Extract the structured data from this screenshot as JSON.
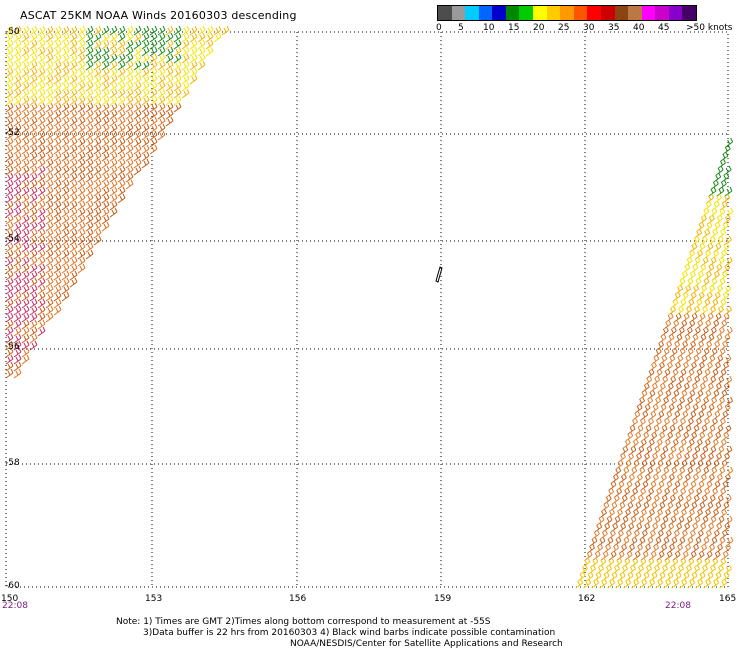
{
  "title": "ASCAT 25KM NOAA Winds 20160303 descending",
  "legend": {
    "colors": [
      "#4d4d4d",
      "#9a9a9a",
      "#00ccff",
      "#0066ff",
      "#0000cc",
      "#008800",
      "#00cc00",
      "#ffff00",
      "#ffcc00",
      "#ff9900",
      "#ff5500",
      "#ff0000",
      "#cc0000",
      "#8b4513",
      "#bb7744",
      "#ff00ff",
      "#cc00cc",
      "#8800cc",
      "#440066"
    ],
    "labels": [
      "0",
      "5",
      "10",
      "15",
      "20",
      "25",
      "30",
      "35",
      "40",
      "45",
      ">50 knots"
    ]
  },
  "axes": {
    "lat_labels": [
      "-50",
      "-52",
      "-54",
      "-56",
      "-58",
      "-60"
    ],
    "lon_labels": [
      "150",
      "153",
      "156",
      "159",
      "162",
      "165"
    ]
  },
  "times": {
    "left": "22:08",
    "right": "22:08"
  },
  "notes": [
    "Note: 1) Times are GMT 2)Times along bottom correspond to measurement at -55S",
    "3)Data buffer is 22 hrs from 20160303 4) Black wind barbs indicate possible contamination",
    "NOAA/NESDIS/Center for Satellite Applications and Research"
  ]
}
